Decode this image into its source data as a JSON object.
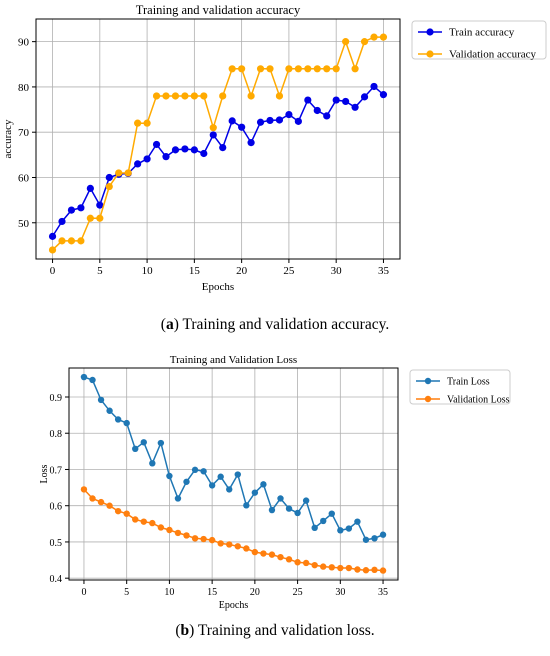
{
  "figures": [
    {
      "caption": {
        "open": "(",
        "letter": "a",
        "text": ") Training and validation accuracy."
      }
    },
    {
      "caption": {
        "open": "(",
        "letter": "b",
        "text": ") Training and validation loss."
      }
    }
  ],
  "chart_data": [
    {
      "type": "line",
      "title": "Training and validation accuracy",
      "xlabel": "Epochs",
      "ylabel": "accuracy",
      "xlim": [
        -1.75,
        36.75
      ],
      "ylim": [
        42,
        95
      ],
      "xticks": [
        0,
        5,
        10,
        15,
        20,
        25,
        30,
        35
      ],
      "yticks": [
        50,
        60,
        70,
        80,
        90
      ],
      "grid": true,
      "legend_position": "outside-right-top",
      "x": [
        0,
        1,
        2,
        3,
        4,
        5,
        6,
        7,
        8,
        9,
        10,
        11,
        12,
        13,
        14,
        15,
        16,
        17,
        18,
        19,
        20,
        21,
        22,
        23,
        24,
        25,
        26,
        27,
        28,
        29,
        30,
        31,
        32,
        33,
        34,
        35
      ],
      "series": [
        {
          "name": "Train accuracy",
          "color": "#0000e6",
          "values": [
            47.0,
            50.3,
            52.8,
            53.3,
            57.6,
            53.9,
            60.0,
            60.7,
            60.9,
            63.0,
            64.1,
            67.3,
            64.6,
            66.1,
            66.3,
            66.1,
            65.3,
            69.4,
            66.6,
            72.5,
            71.1,
            67.7,
            72.2,
            72.6,
            72.7,
            73.9,
            72.4,
            77.1,
            74.8,
            73.6,
            77.1,
            76.8,
            75.5,
            77.8,
            80.1,
            78.3
          ]
        },
        {
          "name": "Validation accuracy",
          "color": "#ffaa00",
          "values": [
            44.0,
            46.0,
            46.0,
            46.0,
            51.0,
            51.0,
            58.0,
            61.0,
            61.0,
            72.0,
            72.0,
            78.0,
            78.0,
            78.0,
            78.0,
            78.0,
            78.0,
            71.0,
            78.0,
            84.0,
            84.0,
            78.0,
            84.0,
            84.0,
            78.0,
            84.0,
            84.0,
            84.0,
            84.0,
            84.0,
            84.0,
            90.0,
            84.0,
            90.0,
            91.0,
            91.0
          ]
        }
      ]
    },
    {
      "type": "line",
      "title": "Training and Validation Loss",
      "xlabel": "Epochs",
      "ylabel": "Loss",
      "xlim": [
        -1.75,
        36.75
      ],
      "ylim": [
        0.395,
        0.98
      ],
      "xticks": [
        0,
        5,
        10,
        15,
        20,
        25,
        30,
        35
      ],
      "yticks": [
        0.4,
        0.5,
        0.6,
        0.7,
        0.8,
        0.9
      ],
      "grid": true,
      "legend_position": "outside-right-top",
      "x": [
        0,
        1,
        2,
        3,
        4,
        5,
        6,
        7,
        8,
        9,
        10,
        11,
        12,
        13,
        14,
        15,
        16,
        17,
        18,
        19,
        20,
        21,
        22,
        23,
        24,
        25,
        26,
        27,
        28,
        29,
        30,
        31,
        32,
        33,
        34,
        35
      ],
      "series": [
        {
          "name": "Train Loss",
          "color": "#1f77b4",
          "values": [
            0.955,
            0.947,
            0.892,
            0.862,
            0.838,
            0.828,
            0.757,
            0.775,
            0.717,
            0.773,
            0.682,
            0.62,
            0.666,
            0.699,
            0.695,
            0.656,
            0.68,
            0.645,
            0.686,
            0.601,
            0.636,
            0.659,
            0.588,
            0.62,
            0.592,
            0.58,
            0.614,
            0.539,
            0.558,
            0.578,
            0.532,
            0.537,
            0.556,
            0.506,
            0.51,
            0.52
          ]
        },
        {
          "name": "Validation Loss",
          "color": "#ff7f0e",
          "values": [
            0.645,
            0.62,
            0.61,
            0.6,
            0.585,
            0.578,
            0.562,
            0.556,
            0.552,
            0.54,
            0.533,
            0.525,
            0.518,
            0.51,
            0.508,
            0.505,
            0.496,
            0.493,
            0.488,
            0.482,
            0.472,
            0.468,
            0.465,
            0.458,
            0.452,
            0.444,
            0.442,
            0.436,
            0.432,
            0.43,
            0.428,
            0.428,
            0.424,
            0.422,
            0.423,
            0.421
          ]
        }
      ]
    }
  ]
}
